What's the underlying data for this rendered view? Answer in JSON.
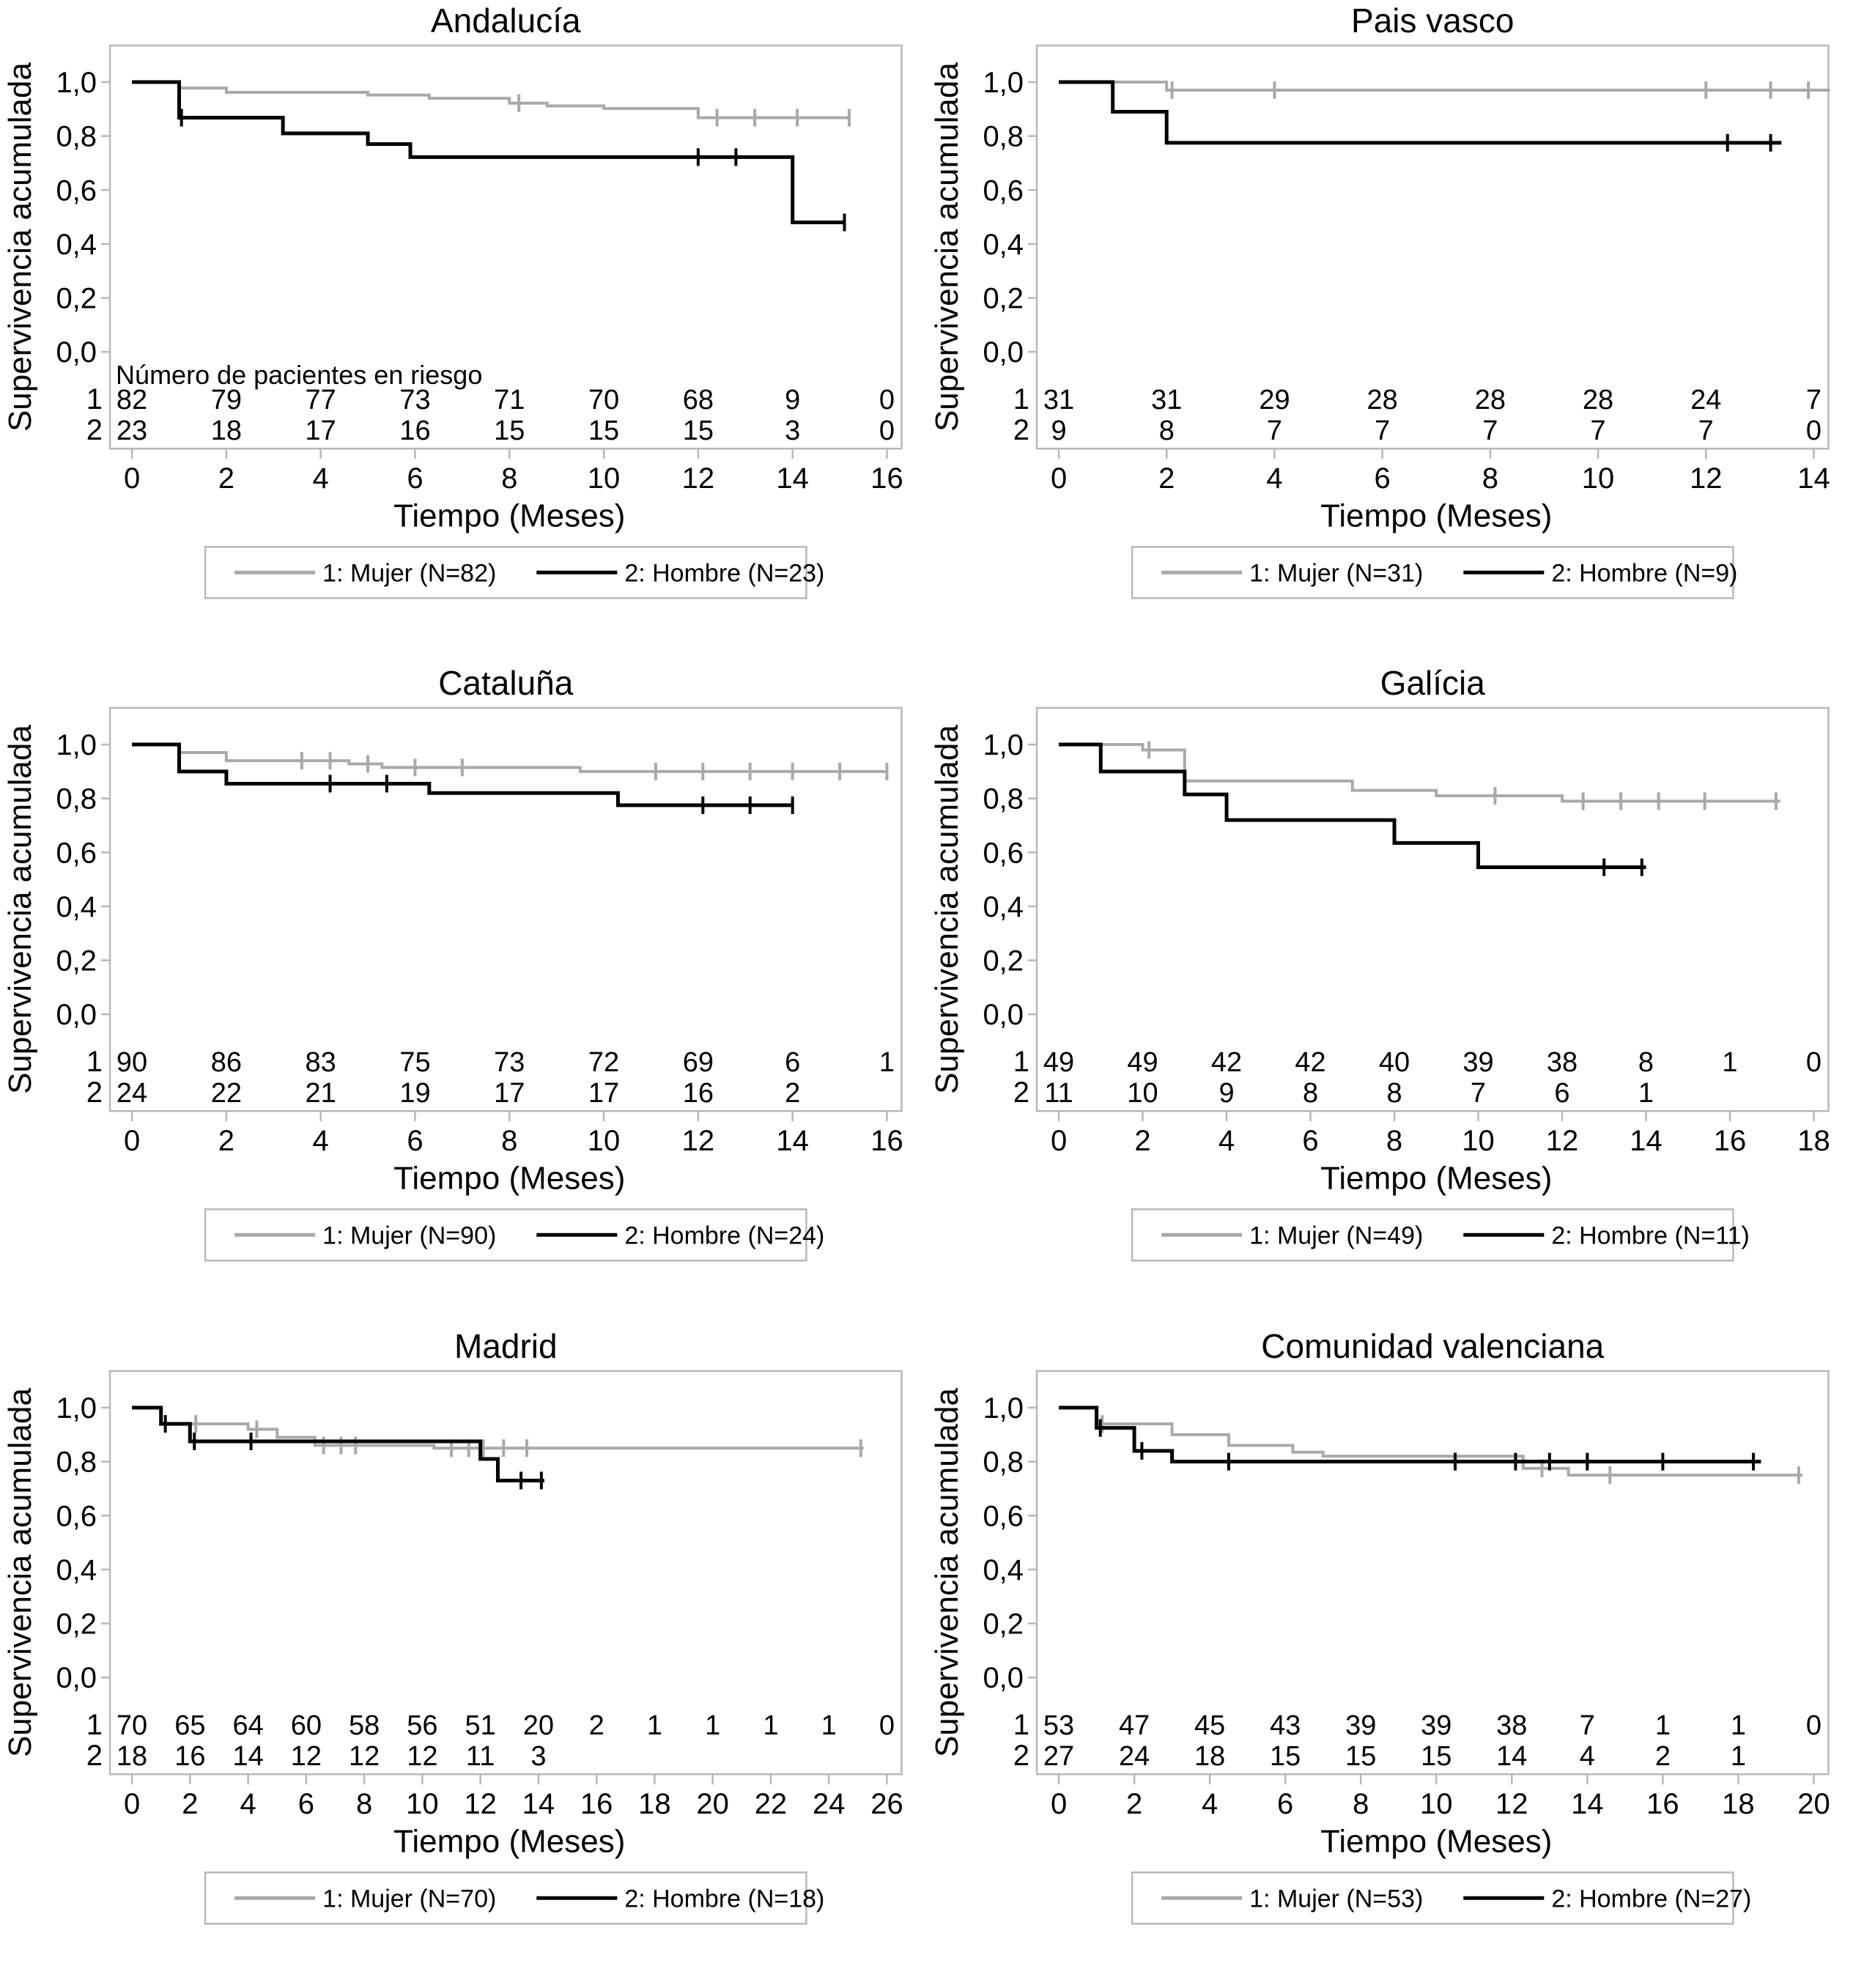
{
  "figure": {
    "ylabel": "Supervivencia acumulada",
    "xlabel": "Tiempo (Meses)",
    "risk_header": "Número de pacientes en riesgo",
    "risk_row_labels": [
      "1",
      "2"
    ],
    "y_ticks": [
      {
        "label": "1,0",
        "value": 1.0
      },
      {
        "label": "0,8",
        "value": 0.8
      },
      {
        "label": "0,6",
        "value": 0.6
      },
      {
        "label": "0,4",
        "value": 0.4
      },
      {
        "label": "0,2",
        "value": 0.2
      },
      {
        "label": "0,0",
        "value": 0.0
      }
    ],
    "colors": {
      "mujer": "#a9a9a9",
      "hombre": "#000000",
      "axis": "#b8b8b8",
      "text": "#000000",
      "background": "#ffffff"
    }
  },
  "chart_data": [
    {
      "type": "km_step",
      "title": "Andalucía",
      "xlim": [
        0,
        16
      ],
      "x_ticks": [
        0,
        2,
        4,
        6,
        8,
        10,
        12,
        14,
        16
      ],
      "show_risk_header": true,
      "series": [
        {
          "key": "mujer",
          "name": "1: Mujer (N=82)",
          "steps": [
            [
              0,
              1.0
            ],
            [
              1,
              0.978
            ],
            [
              2,
              0.962
            ],
            [
              5,
              0.952
            ],
            [
              6.3,
              0.94
            ],
            [
              8,
              0.922
            ],
            [
              8.8,
              0.912
            ],
            [
              10,
              0.902
            ],
            [
              12,
              0.868
            ],
            [
              15.2,
              0.868
            ]
          ],
          "censors": [
            [
              8.2,
              0.922
            ],
            [
              12.4,
              0.868
            ],
            [
              13.2,
              0.868
            ],
            [
              14.1,
              0.868
            ],
            [
              15.2,
              0.868
            ]
          ]
        },
        {
          "key": "hombre",
          "name": "2: Hombre (N=23)",
          "steps": [
            [
              0,
              1.0
            ],
            [
              1,
              0.868
            ],
            [
              3.2,
              0.81
            ],
            [
              5,
              0.77
            ],
            [
              5.9,
              0.722
            ],
            [
              14,
              0.48
            ],
            [
              15.1,
              0.48
            ]
          ],
          "censors": [
            [
              1.05,
              0.868
            ],
            [
              12,
              0.722
            ],
            [
              12.8,
              0.722
            ],
            [
              15.1,
              0.48
            ]
          ]
        }
      ],
      "risk_table": {
        "rows": [
          {
            "label": "1",
            "values": [
              82,
              79,
              77,
              73,
              71,
              70,
              68,
              9,
              0
            ]
          },
          {
            "label": "2",
            "values": [
              23,
              18,
              17,
              16,
              15,
              15,
              15,
              3,
              0
            ]
          }
        ]
      },
      "legend": [
        "1: Mujer (N=82)",
        "2: Hombre (N=23)"
      ]
    },
    {
      "type": "km_step",
      "title": "Pais vasco",
      "xlim": [
        0,
        14
      ],
      "x_ticks": [
        0,
        2,
        4,
        6,
        8,
        10,
        12,
        14
      ],
      "show_risk_header": false,
      "series": [
        {
          "key": "mujer",
          "name": "1: Mujer (N=31)",
          "steps": [
            [
              0,
              1.0
            ],
            [
              2,
              0.97
            ],
            [
              14.3,
              0.97
            ]
          ],
          "censors": [
            [
              2.1,
              0.97
            ],
            [
              4,
              0.97
            ],
            [
              12,
              0.97
            ],
            [
              13.2,
              0.97
            ],
            [
              13.9,
              0.97
            ]
          ]
        },
        {
          "key": "hombre",
          "name": "2: Hombre (N=9)",
          "steps": [
            [
              0,
              1.0
            ],
            [
              1,
              0.89
            ],
            [
              2,
              0.775
            ],
            [
              13.4,
              0.775
            ]
          ],
          "censors": [
            [
              12.4,
              0.775
            ],
            [
              13.2,
              0.775
            ]
          ]
        }
      ],
      "risk_table": {
        "rows": [
          {
            "label": "1",
            "values": [
              31,
              31,
              29,
              28,
              28,
              28,
              24,
              7
            ]
          },
          {
            "label": "2",
            "values": [
              9,
              8,
              7,
              7,
              7,
              7,
              7,
              0
            ]
          }
        ]
      },
      "legend": [
        "1: Mujer (N=31)",
        "2: Hombre (N=9)"
      ]
    },
    {
      "type": "km_step",
      "title": "Cataluña",
      "xlim": [
        0,
        16
      ],
      "x_ticks": [
        0,
        2,
        4,
        6,
        8,
        10,
        12,
        14,
        16
      ],
      "show_risk_header": false,
      "series": [
        {
          "key": "mujer",
          "name": "1: Mujer (N=90)",
          "steps": [
            [
              0,
              1.0
            ],
            [
              1,
              0.97
            ],
            [
              2,
              0.94
            ],
            [
              4.6,
              0.928
            ],
            [
              5.3,
              0.915
            ],
            [
              9.5,
              0.9
            ],
            [
              16,
              0.9
            ]
          ],
          "censors": [
            [
              3.6,
              0.94
            ],
            [
              4.2,
              0.94
            ],
            [
              5,
              0.928
            ],
            [
              6,
              0.915
            ],
            [
              7,
              0.915
            ],
            [
              11.1,
              0.9
            ],
            [
              12.1,
              0.9
            ],
            [
              13.1,
              0.9
            ],
            [
              14,
              0.9
            ],
            [
              15,
              0.9
            ],
            [
              16,
              0.9
            ]
          ]
        },
        {
          "key": "hombre",
          "name": "2: Hombre (N=24)",
          "steps": [
            [
              0,
              1.0
            ],
            [
              1,
              0.9
            ],
            [
              2,
              0.855
            ],
            [
              6.3,
              0.82
            ],
            [
              10.3,
              0.775
            ],
            [
              14,
              0.775
            ]
          ],
          "censors": [
            [
              4.2,
              0.855
            ],
            [
              5.4,
              0.855
            ],
            [
              12.1,
              0.775
            ],
            [
              13.1,
              0.775
            ],
            [
              14,
              0.775
            ]
          ]
        }
      ],
      "risk_table": {
        "rows": [
          {
            "label": "1",
            "values": [
              90,
              86,
              83,
              75,
              73,
              72,
              69,
              6,
              1
            ]
          },
          {
            "label": "2",
            "values": [
              24,
              22,
              21,
              19,
              17,
              17,
              16,
              2,
              ""
            ]
          }
        ]
      },
      "legend": [
        "1: Mujer (N=90)",
        "2: Hombre (N=24)"
      ]
    },
    {
      "type": "km_step",
      "title": "Galícia",
      "xlim": [
        0,
        18
      ],
      "x_ticks": [
        0,
        2,
        4,
        6,
        8,
        10,
        12,
        14,
        16,
        18
      ],
      "show_risk_header": false,
      "series": [
        {
          "key": "mujer",
          "name": "1: Mujer (N=49)",
          "steps": [
            [
              0,
              1.0
            ],
            [
              2,
              0.98
            ],
            [
              3,
              0.865
            ],
            [
              7,
              0.83
            ],
            [
              9,
              0.81
            ],
            [
              12,
              0.79
            ],
            [
              17.2,
              0.79
            ]
          ],
          "censors": [
            [
              2.15,
              0.98
            ],
            [
              10.4,
              0.81
            ],
            [
              12.5,
              0.79
            ],
            [
              13.4,
              0.79
            ],
            [
              14.3,
              0.79
            ],
            [
              15.4,
              0.79
            ],
            [
              17.1,
              0.79
            ]
          ]
        },
        {
          "key": "hombre",
          "name": "2: Hombre (N=11)",
          "steps": [
            [
              0,
              1.0
            ],
            [
              1,
              0.9
            ],
            [
              3,
              0.815
            ],
            [
              4,
              0.72
            ],
            [
              8,
              0.635
            ],
            [
              10,
              0.545
            ],
            [
              14,
              0.545
            ]
          ],
          "censors": [
            [
              13,
              0.545
            ],
            [
              13.9,
              0.545
            ]
          ]
        }
      ],
      "risk_table": {
        "rows": [
          {
            "label": "1",
            "values": [
              49,
              49,
              42,
              42,
              40,
              39,
              38,
              8,
              1,
              0
            ]
          },
          {
            "label": "2",
            "values": [
              11,
              10,
              9,
              8,
              8,
              7,
              6,
              1,
              "",
              ""
            ]
          }
        ]
      },
      "legend": [
        "1: Mujer (N=49)",
        "2: Hombre (N=11)"
      ]
    },
    {
      "type": "km_step",
      "title": "Madrid",
      "xlim": [
        0,
        26
      ],
      "x_ticks": [
        0,
        2,
        4,
        6,
        8,
        10,
        12,
        14,
        16,
        18,
        20,
        22,
        24,
        26
      ],
      "show_risk_header": false,
      "series": [
        {
          "key": "mujer",
          "name": "1: Mujer (N=70)",
          "steps": [
            [
              0,
              1.0
            ],
            [
              1,
              0.94
            ],
            [
              4,
              0.92
            ],
            [
              5,
              0.89
            ],
            [
              6.3,
              0.86
            ],
            [
              10.4,
              0.85
            ],
            [
              25.2,
              0.85
            ]
          ],
          "censors": [
            [
              2.2,
              0.94
            ],
            [
              4.3,
              0.92
            ],
            [
              6.6,
              0.86
            ],
            [
              7.2,
              0.86
            ],
            [
              7.7,
              0.86
            ],
            [
              11,
              0.85
            ],
            [
              11.6,
              0.85
            ],
            [
              12.1,
              0.85
            ],
            [
              12.8,
              0.85
            ],
            [
              13.6,
              0.85
            ],
            [
              25.1,
              0.85
            ]
          ]
        },
        {
          "key": "hombre",
          "name": "2: Hombre (N=18)",
          "steps": [
            [
              0,
              1.0
            ],
            [
              1,
              0.94
            ],
            [
              2,
              0.875
            ],
            [
              12,
              0.81
            ],
            [
              12.6,
              0.73
            ],
            [
              14.2,
              0.73
            ]
          ],
          "censors": [
            [
              1.15,
              0.94
            ],
            [
              2.15,
              0.875
            ],
            [
              4.1,
              0.875
            ],
            [
              13.4,
              0.73
            ],
            [
              14.1,
              0.73
            ]
          ]
        }
      ],
      "risk_table": {
        "rows": [
          {
            "label": "1",
            "values": [
              70,
              65,
              64,
              60,
              58,
              56,
              51,
              20,
              2,
              1,
              1,
              1,
              1,
              0
            ]
          },
          {
            "label": "2",
            "values": [
              18,
              16,
              14,
              12,
              12,
              12,
              11,
              3,
              "",
              "",
              "",
              "",
              "",
              ""
            ]
          }
        ]
      },
      "legend": [
        "1: Mujer (N=70)",
        "2: Hombre (N=18)"
      ]
    },
    {
      "type": "km_step",
      "title": "Comunidad valenciana",
      "xlim": [
        0,
        20
      ],
      "x_ticks": [
        0,
        2,
        4,
        6,
        8,
        10,
        12,
        14,
        16,
        18,
        20
      ],
      "show_risk_header": false,
      "series": [
        {
          "key": "mujer",
          "name": "1: Mujer (N=53)",
          "steps": [
            [
              0,
              1.0
            ],
            [
              1,
              0.94
            ],
            [
              3,
              0.9
            ],
            [
              4.5,
              0.86
            ],
            [
              6.2,
              0.835
            ],
            [
              7,
              0.82
            ],
            [
              12.3,
              0.775
            ],
            [
              13.5,
              0.75
            ],
            [
              19.7,
              0.75
            ]
          ],
          "censors": [
            [
              1.15,
              0.94
            ],
            [
              12.8,
              0.775
            ],
            [
              14.6,
              0.75
            ],
            [
              19.6,
              0.75
            ]
          ]
        },
        {
          "key": "hombre",
          "name": "2: Hombre (N=27)",
          "steps": [
            [
              0,
              1.0
            ],
            [
              1,
              0.925
            ],
            [
              2,
              0.84
            ],
            [
              3,
              0.8
            ],
            [
              18.6,
              0.8
            ]
          ],
          "censors": [
            [
              1.1,
              0.925
            ],
            [
              2.2,
              0.84
            ],
            [
              4.5,
              0.8
            ],
            [
              10.5,
              0.8
            ],
            [
              12.1,
              0.8
            ],
            [
              13,
              0.8
            ],
            [
              14,
              0.8
            ],
            [
              16,
              0.8
            ],
            [
              18.4,
              0.8
            ]
          ]
        }
      ],
      "risk_table": {
        "rows": [
          {
            "label": "1",
            "values": [
              53,
              47,
              45,
              43,
              39,
              39,
              38,
              7,
              1,
              1,
              0
            ]
          },
          {
            "label": "2",
            "values": [
              27,
              24,
              18,
              15,
              15,
              15,
              14,
              4,
              2,
              1,
              ""
            ]
          }
        ]
      },
      "legend": [
        "1: Mujer (N=53)",
        "2: Hombre (N=27)"
      ]
    }
  ]
}
